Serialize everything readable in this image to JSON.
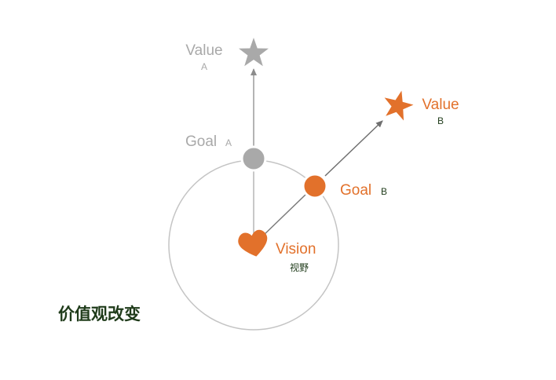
{
  "colors": {
    "gray": "#a9a9a9",
    "orange": "#e2712b",
    "dark_green": "#1f3b1a",
    "line_gray": "#8c8c8c",
    "circle_stroke": "#c4c4c4"
  },
  "value_a": {
    "label": "Value",
    "sub": "A",
    "icon": "star-icon"
  },
  "goal_a": {
    "label": "Goal",
    "sub": "A",
    "icon": "circle-dot-icon"
  },
  "value_b": {
    "label": "Value",
    "sub": "B",
    "icon": "star-icon"
  },
  "goal_b": {
    "label": "Goal",
    "sub": "B",
    "icon": "circle-dot-icon"
  },
  "vision": {
    "label": "Vision",
    "sub": "视野",
    "icon": "heart-icon"
  },
  "caption": "价值观改变"
}
